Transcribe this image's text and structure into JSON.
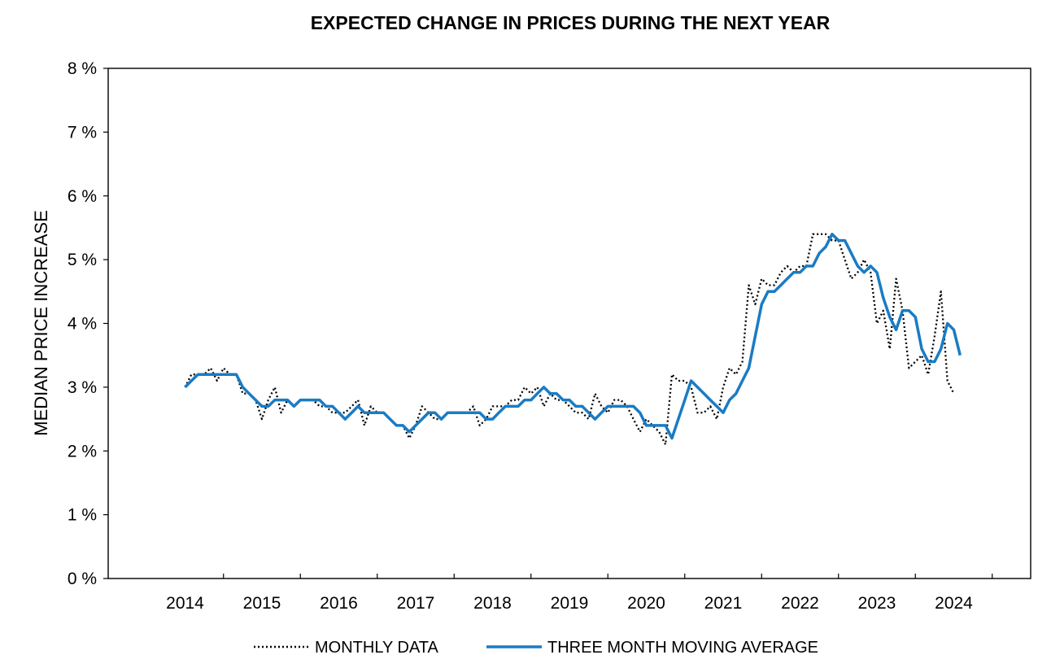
{
  "chart_data": {
    "type": "line",
    "title": "EXPECTED CHANGE IN PRICES DURING THE NEXT YEAR",
    "xlabel": "",
    "ylabel": "MEDIAN PRICE INCREASE",
    "ylim": [
      0,
      8
    ],
    "xlim": [
      2013,
      2025
    ],
    "y_ticks": [
      "0 %",
      "1 %",
      "2 %",
      "3 %",
      "4 %",
      "5 %",
      "6 %",
      "7 %",
      "8 %"
    ],
    "x_ticks": [
      "2014",
      "2015",
      "2016",
      "2017",
      "2018",
      "2019",
      "2020",
      "2021",
      "2022",
      "2023",
      "2024"
    ],
    "legend": {
      "position": "bottom"
    },
    "series": [
      {
        "name": "MONTHLY DATA",
        "style": "dotted",
        "color": "#000000",
        "values": [
          [
            2014.0,
            3.0
          ],
          [
            2014.083,
            3.2
          ],
          [
            2014.167,
            3.2
          ],
          [
            2014.25,
            3.2
          ],
          [
            2014.333,
            3.3
          ],
          [
            2014.417,
            3.1
          ],
          [
            2014.5,
            3.3
          ],
          [
            2014.583,
            3.2
          ],
          [
            2014.667,
            3.2
          ],
          [
            2014.75,
            2.9
          ],
          [
            2014.833,
            2.9
          ],
          [
            2014.917,
            2.8
          ],
          [
            2015.0,
            2.5
          ],
          [
            2015.083,
            2.8
          ],
          [
            2015.167,
            3.0
          ],
          [
            2015.25,
            2.6
          ],
          [
            2015.333,
            2.8
          ],
          [
            2015.417,
            2.7
          ],
          [
            2015.5,
            2.8
          ],
          [
            2015.583,
            2.8
          ],
          [
            2015.667,
            2.8
          ],
          [
            2015.75,
            2.7
          ],
          [
            2015.833,
            2.7
          ],
          [
            2015.917,
            2.6
          ],
          [
            2016.0,
            2.6
          ],
          [
            2016.083,
            2.6
          ],
          [
            2016.167,
            2.7
          ],
          [
            2016.25,
            2.8
          ],
          [
            2016.333,
            2.4
          ],
          [
            2016.417,
            2.7
          ],
          [
            2016.5,
            2.6
          ],
          [
            2016.583,
            2.6
          ],
          [
            2016.667,
            2.5
          ],
          [
            2016.75,
            2.4
          ],
          [
            2016.833,
            2.4
          ],
          [
            2016.917,
            2.2
          ],
          [
            2017.0,
            2.4
          ],
          [
            2017.083,
            2.7
          ],
          [
            2017.167,
            2.6
          ],
          [
            2017.25,
            2.5
          ],
          [
            2017.333,
            2.5
          ],
          [
            2017.417,
            2.6
          ],
          [
            2017.5,
            2.6
          ],
          [
            2017.583,
            2.6
          ],
          [
            2017.667,
            2.6
          ],
          [
            2017.75,
            2.7
          ],
          [
            2017.833,
            2.4
          ],
          [
            2017.917,
            2.5
          ],
          [
            2018.0,
            2.7
          ],
          [
            2018.083,
            2.7
          ],
          [
            2018.167,
            2.7
          ],
          [
            2018.25,
            2.8
          ],
          [
            2018.333,
            2.8
          ],
          [
            2018.417,
            3.0
          ],
          [
            2018.5,
            2.9
          ],
          [
            2018.583,
            3.0
          ],
          [
            2018.667,
            2.7
          ],
          [
            2018.75,
            2.9
          ],
          [
            2018.833,
            2.8
          ],
          [
            2018.917,
            2.8
          ],
          [
            2019.0,
            2.7
          ],
          [
            2019.083,
            2.6
          ],
          [
            2019.167,
            2.6
          ],
          [
            2019.25,
            2.5
          ],
          [
            2019.333,
            2.9
          ],
          [
            2019.417,
            2.7
          ],
          [
            2019.5,
            2.6
          ],
          [
            2019.583,
            2.8
          ],
          [
            2019.667,
            2.8
          ],
          [
            2019.75,
            2.7
          ],
          [
            2019.833,
            2.5
          ],
          [
            2019.917,
            2.3
          ],
          [
            2020.0,
            2.5
          ],
          [
            2020.083,
            2.4
          ],
          [
            2020.167,
            2.3
          ],
          [
            2020.25,
            2.1
          ],
          [
            2020.333,
            3.2
          ],
          [
            2020.417,
            3.1
          ],
          [
            2020.5,
            3.1
          ],
          [
            2020.583,
            3.0
          ],
          [
            2020.667,
            2.6
          ],
          [
            2020.75,
            2.6
          ],
          [
            2020.833,
            2.7
          ],
          [
            2020.917,
            2.5
          ],
          [
            2021.0,
            3.0
          ],
          [
            2021.083,
            3.3
          ],
          [
            2021.167,
            3.2
          ],
          [
            2021.25,
            3.4
          ],
          [
            2021.333,
            4.6
          ],
          [
            2021.417,
            4.3
          ],
          [
            2021.5,
            4.7
          ],
          [
            2021.583,
            4.6
          ],
          [
            2021.667,
            4.6
          ],
          [
            2021.75,
            4.8
          ],
          [
            2021.833,
            4.9
          ],
          [
            2021.917,
            4.8
          ],
          [
            2022.0,
            4.9
          ],
          [
            2022.083,
            4.9
          ],
          [
            2022.167,
            5.4
          ],
          [
            2022.25,
            5.4
          ],
          [
            2022.333,
            5.4
          ],
          [
            2022.417,
            5.3
          ],
          [
            2022.5,
            5.3
          ],
          [
            2022.583,
            5.0
          ],
          [
            2022.667,
            4.7
          ],
          [
            2022.75,
            4.8
          ],
          [
            2022.833,
            5.0
          ],
          [
            2022.917,
            4.8
          ],
          [
            2023.0,
            4.0
          ],
          [
            2023.083,
            4.2
          ],
          [
            2023.167,
            3.6
          ],
          [
            2023.25,
            4.7
          ],
          [
            2023.333,
            4.2
          ],
          [
            2023.417,
            3.3
          ],
          [
            2023.5,
            3.4
          ],
          [
            2023.583,
            3.5
          ],
          [
            2023.667,
            3.2
          ],
          [
            2023.75,
            3.8
          ],
          [
            2023.833,
            4.5
          ],
          [
            2023.917,
            3.1
          ],
          [
            2024.0,
            2.9
          ]
        ]
      },
      {
        "name": "THREE MONTH MOVING AVERAGE",
        "style": "solid",
        "color": "#1a7bc4",
        "values": [
          [
            2014.0,
            3.0
          ],
          [
            2014.083,
            3.1
          ],
          [
            2014.167,
            3.2
          ],
          [
            2014.25,
            3.2
          ],
          [
            2014.333,
            3.2
          ],
          [
            2014.417,
            3.2
          ],
          [
            2014.5,
            3.2
          ],
          [
            2014.583,
            3.2
          ],
          [
            2014.667,
            3.2
          ],
          [
            2014.75,
            3.0
          ],
          [
            2014.833,
            2.9
          ],
          [
            2014.917,
            2.8
          ],
          [
            2015.0,
            2.7
          ],
          [
            2015.083,
            2.7
          ],
          [
            2015.167,
            2.8
          ],
          [
            2015.25,
            2.8
          ],
          [
            2015.333,
            2.8
          ],
          [
            2015.417,
            2.7
          ],
          [
            2015.5,
            2.8
          ],
          [
            2015.583,
            2.8
          ],
          [
            2015.667,
            2.8
          ],
          [
            2015.75,
            2.8
          ],
          [
            2015.833,
            2.7
          ],
          [
            2015.917,
            2.7
          ],
          [
            2016.0,
            2.6
          ],
          [
            2016.083,
            2.5
          ],
          [
            2016.167,
            2.6
          ],
          [
            2016.25,
            2.7
          ],
          [
            2016.333,
            2.6
          ],
          [
            2016.417,
            2.6
          ],
          [
            2016.5,
            2.6
          ],
          [
            2016.583,
            2.6
          ],
          [
            2016.667,
            2.5
          ],
          [
            2016.75,
            2.4
          ],
          [
            2016.833,
            2.4
          ],
          [
            2016.917,
            2.3
          ],
          [
            2017.0,
            2.4
          ],
          [
            2017.083,
            2.5
          ],
          [
            2017.167,
            2.6
          ],
          [
            2017.25,
            2.6
          ],
          [
            2017.333,
            2.5
          ],
          [
            2017.417,
            2.6
          ],
          [
            2017.5,
            2.6
          ],
          [
            2017.583,
            2.6
          ],
          [
            2017.667,
            2.6
          ],
          [
            2017.75,
            2.6
          ],
          [
            2017.833,
            2.6
          ],
          [
            2017.917,
            2.5
          ],
          [
            2018.0,
            2.5
          ],
          [
            2018.083,
            2.6
          ],
          [
            2018.167,
            2.7
          ],
          [
            2018.25,
            2.7
          ],
          [
            2018.333,
            2.7
          ],
          [
            2018.417,
            2.8
          ],
          [
            2018.5,
            2.8
          ],
          [
            2018.583,
            2.9
          ],
          [
            2018.667,
            3.0
          ],
          [
            2018.75,
            2.9
          ],
          [
            2018.833,
            2.9
          ],
          [
            2018.917,
            2.8
          ],
          [
            2019.0,
            2.8
          ],
          [
            2019.083,
            2.7
          ],
          [
            2019.167,
            2.7
          ],
          [
            2019.25,
            2.6
          ],
          [
            2019.333,
            2.5
          ],
          [
            2019.417,
            2.6
          ],
          [
            2019.5,
            2.7
          ],
          [
            2019.583,
            2.7
          ],
          [
            2019.667,
            2.7
          ],
          [
            2019.75,
            2.7
          ],
          [
            2019.833,
            2.7
          ],
          [
            2019.917,
            2.6
          ],
          [
            2020.0,
            2.4
          ],
          [
            2020.083,
            2.4
          ],
          [
            2020.167,
            2.4
          ],
          [
            2020.25,
            2.4
          ],
          [
            2020.333,
            2.2
          ],
          [
            2020.417,
            2.5
          ],
          [
            2020.5,
            2.8
          ],
          [
            2020.583,
            3.1
          ],
          [
            2020.667,
            3.0
          ],
          [
            2020.75,
            2.9
          ],
          [
            2020.833,
            2.8
          ],
          [
            2020.917,
            2.7
          ],
          [
            2021.0,
            2.6
          ],
          [
            2021.083,
            2.8
          ],
          [
            2021.167,
            2.9
          ],
          [
            2021.25,
            3.1
          ],
          [
            2021.333,
            3.3
          ],
          [
            2021.417,
            3.8
          ],
          [
            2021.5,
            4.3
          ],
          [
            2021.583,
            4.5
          ],
          [
            2021.667,
            4.5
          ],
          [
            2021.75,
            4.6
          ],
          [
            2021.833,
            4.7
          ],
          [
            2021.917,
            4.8
          ],
          [
            2022.0,
            4.8
          ],
          [
            2022.083,
            4.9
          ],
          [
            2022.167,
            4.9
          ],
          [
            2022.25,
            5.1
          ],
          [
            2022.333,
            5.2
          ],
          [
            2022.417,
            5.4
          ],
          [
            2022.5,
            5.3
          ],
          [
            2022.583,
            5.3
          ],
          [
            2022.667,
            5.1
          ],
          [
            2022.75,
            4.9
          ],
          [
            2022.833,
            4.8
          ],
          [
            2022.917,
            4.9
          ],
          [
            2023.0,
            4.8
          ],
          [
            2023.083,
            4.4
          ],
          [
            2023.167,
            4.1
          ],
          [
            2023.25,
            3.9
          ],
          [
            2023.333,
            4.2
          ],
          [
            2023.417,
            4.2
          ],
          [
            2023.5,
            4.1
          ],
          [
            2023.583,
            3.6
          ],
          [
            2023.667,
            3.4
          ],
          [
            2023.75,
            3.4
          ],
          [
            2023.833,
            3.6
          ],
          [
            2023.917,
            4.0
          ],
          [
            2024.0,
            3.9
          ],
          [
            2024.083,
            3.5
          ]
        ]
      }
    ]
  }
}
